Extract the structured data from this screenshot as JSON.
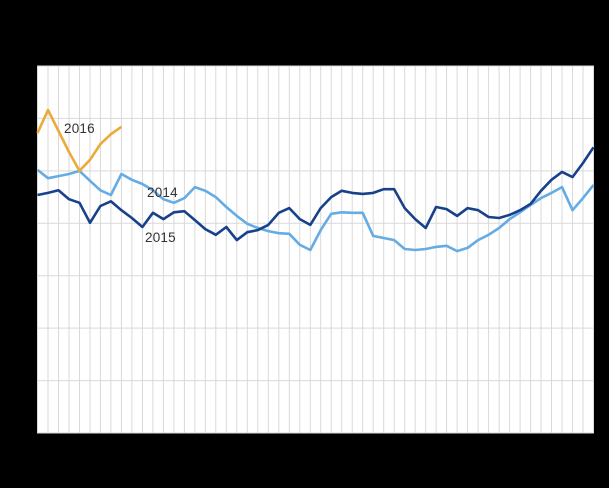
{
  "chart_data": {
    "type": "line",
    "title": "",
    "subtitle": "",
    "xlabel": "",
    "ylabel": "",
    "x_axis": {
      "unit": "week-of-year",
      "tick_labels_visible": false,
      "points_full_series": 54,
      "gridlines": "one vertical gridline per week"
    },
    "y_axis": {
      "tick_labels_visible": false,
      "unit": "gridline-units (axis labels not rendered in image)",
      "range": [
        0,
        7
      ],
      "gridlines": 7
    },
    "grid": true,
    "legend_position": "inline labels beside lines",
    "series": [
      {
        "label": "2014",
        "color": "#66ace4",
        "values": [
          5.02,
          4.86,
          4.9,
          4.94,
          5.0,
          4.81,
          4.63,
          4.54,
          4.94,
          4.83,
          4.75,
          4.63,
          4.46,
          4.39,
          4.48,
          4.69,
          4.62,
          4.5,
          4.31,
          4.14,
          3.99,
          3.91,
          3.85,
          3.81,
          3.8,
          3.59,
          3.49,
          3.87,
          4.18,
          4.21,
          4.2,
          4.2,
          3.76,
          3.72,
          3.68,
          3.51,
          3.49,
          3.51,
          3.55,
          3.57,
          3.47,
          3.53,
          3.68,
          3.78,
          3.91,
          4.08,
          4.21,
          4.35,
          4.48,
          4.58,
          4.69,
          4.25,
          4.48,
          4.73
        ]
      },
      {
        "label": "2015",
        "color": "#17418a",
        "values": [
          4.54,
          4.58,
          4.63,
          4.46,
          4.39,
          4.01,
          4.33,
          4.42,
          4.25,
          4.1,
          3.93,
          4.2,
          4.08,
          4.21,
          4.23,
          4.06,
          3.89,
          3.78,
          3.93,
          3.68,
          3.83,
          3.87,
          3.97,
          4.2,
          4.29,
          4.08,
          3.97,
          4.29,
          4.5,
          4.62,
          4.58,
          4.56,
          4.58,
          4.65,
          4.65,
          4.29,
          4.08,
          3.91,
          4.31,
          4.27,
          4.14,
          4.29,
          4.25,
          4.12,
          4.1,
          4.16,
          4.25,
          4.37,
          4.62,
          4.83,
          4.98,
          4.88,
          5.15,
          5.45
        ]
      },
      {
        "label": "2016",
        "color": "#ecaa3a",
        "values": [
          5.72,
          6.16,
          5.76,
          5.36,
          5.0,
          5.21,
          5.51,
          5.7,
          5.84
        ]
      }
    ],
    "colors": {
      "surround_background": "#000000",
      "plot_background": "#ffffff",
      "grid_color": "#d9d9d9",
      "label_text": "#333333"
    }
  }
}
